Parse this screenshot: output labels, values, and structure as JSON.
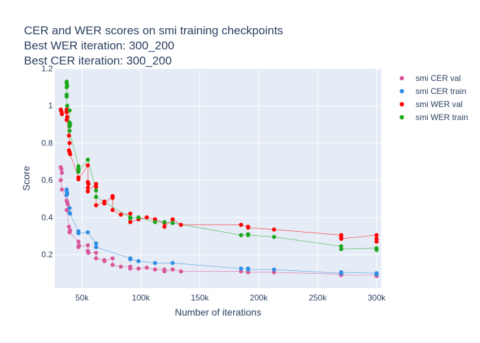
{
  "chart_data": {
    "type": "scatter",
    "title_lines": [
      "CER and WER scores on smi training checkpoints",
      "Best WER iteration: 300_200",
      "Best CER iteration: 300_200"
    ],
    "xlabel": "Number of iterations",
    "ylabel": "Score",
    "xlim": [
      27000,
      304000
    ],
    "ylim": [
      0.02,
      1.2
    ],
    "x_ticks": [
      50000,
      100000,
      150000,
      200000,
      250000,
      300000
    ],
    "x_tick_labels": [
      "50k",
      "100k",
      "150k",
      "200k",
      "250k",
      "300k"
    ],
    "y_ticks": [
      0.2,
      0.4,
      0.6,
      0.8,
      1,
      1.2
    ],
    "y_tick_labels": [
      "0.2",
      "0.4",
      "0.6",
      "0.8",
      "1",
      "1.2"
    ],
    "grid": true,
    "legend_position": "right",
    "series": [
      {
        "name": "smi CER val",
        "color": "#d9579a",
        "points": [
          [
            32000,
            0.67
          ],
          [
            32500,
            0.66
          ],
          [
            33000,
            0.64
          ],
          [
            32000,
            0.6
          ],
          [
            33000,
            0.55
          ],
          [
            37000,
            0.49
          ],
          [
            37500,
            0.48
          ],
          [
            38000,
            0.47
          ],
          [
            37000,
            0.44
          ],
          [
            39000,
            0.35
          ],
          [
            40000,
            0.33
          ],
          [
            39500,
            0.32
          ],
          [
            47000,
            0.27
          ],
          [
            47500,
            0.25
          ],
          [
            47000,
            0.24
          ],
          [
            55000,
            0.25
          ],
          [
            55000,
            0.22
          ],
          [
            55500,
            0.21
          ],
          [
            62000,
            0.21
          ],
          [
            62000,
            0.18
          ],
          [
            69000,
            0.17
          ],
          [
            69000,
            0.165
          ],
          [
            76000,
            0.18
          ],
          [
            76000,
            0.145
          ],
          [
            83000,
            0.135
          ],
          [
            91000,
            0.135
          ],
          [
            91000,
            0.125
          ],
          [
            98000,
            0.125
          ],
          [
            105000,
            0.13
          ],
          [
            112000,
            0.12
          ],
          [
            120000,
            0.12
          ],
          [
            120000,
            0.11
          ],
          [
            127000,
            0.12
          ],
          [
            134000,
            0.11
          ],
          [
            185000,
            0.11
          ],
          [
            191000,
            0.105
          ],
          [
            213000,
            0.105
          ],
          [
            270000,
            0.095
          ],
          [
            270000,
            0.09
          ],
          [
            300000,
            0.09
          ],
          [
            300000,
            0.085
          ]
        ]
      },
      {
        "name": "smi CER train",
        "color": "#2f8de4",
        "points": [
          [
            37000,
            0.55
          ],
          [
            37000,
            0.54
          ],
          [
            37500,
            0.53
          ],
          [
            37000,
            0.52
          ],
          [
            39500,
            0.45
          ],
          [
            40000,
            0.42
          ],
          [
            39500,
            0.425
          ],
          [
            47000,
            0.325
          ],
          [
            47000,
            0.315
          ],
          [
            55000,
            0.32
          ],
          [
            62000,
            0.26
          ],
          [
            62000,
            0.24
          ],
          [
            91000,
            0.18
          ],
          [
            91000,
            0.175
          ],
          [
            98000,
            0.165
          ],
          [
            112000,
            0.155
          ],
          [
            127000,
            0.155
          ],
          [
            185000,
            0.125
          ],
          [
            191000,
            0.125
          ],
          [
            191000,
            0.12
          ],
          [
            213000,
            0.12
          ],
          [
            270000,
            0.1
          ],
          [
            270000,
            0.105
          ],
          [
            300000,
            0.1
          ],
          [
            300000,
            0.095
          ]
        ]
      },
      {
        "name": "smi WER val",
        "color": "#ff0000",
        "points": [
          [
            32000,
            0.98
          ],
          [
            32500,
            0.97
          ],
          [
            33000,
            0.955
          ],
          [
            37000,
            0.98
          ],
          [
            37000,
            0.965
          ],
          [
            37500,
            0.94
          ],
          [
            37000,
            0.925
          ],
          [
            39000,
            0.84
          ],
          [
            39500,
            0.8
          ],
          [
            39000,
            0.76
          ],
          [
            39500,
            0.75
          ],
          [
            40000,
            0.74
          ],
          [
            47000,
            0.615
          ],
          [
            47000,
            0.605
          ],
          [
            55000,
            0.68
          ],
          [
            55000,
            0.59
          ],
          [
            55500,
            0.58
          ],
          [
            55000,
            0.56
          ],
          [
            55000,
            0.54
          ],
          [
            62000,
            0.58
          ],
          [
            62000,
            0.565
          ],
          [
            62000,
            0.465
          ],
          [
            69000,
            0.485
          ],
          [
            69000,
            0.475
          ],
          [
            76000,
            0.515
          ],
          [
            76000,
            0.505
          ],
          [
            76000,
            0.44
          ],
          [
            83000,
            0.415
          ],
          [
            91000,
            0.42
          ],
          [
            91000,
            0.395
          ],
          [
            91000,
            0.375
          ],
          [
            98000,
            0.39
          ],
          [
            105000,
            0.4
          ],
          [
            112000,
            0.39
          ],
          [
            120000,
            0.37
          ],
          [
            120000,
            0.35
          ],
          [
            127000,
            0.39
          ],
          [
            134000,
            0.36
          ],
          [
            185000,
            0.36
          ],
          [
            191000,
            0.35
          ],
          [
            191000,
            0.345
          ],
          [
            213000,
            0.335
          ],
          [
            270000,
            0.305
          ],
          [
            270000,
            0.295
          ],
          [
            270000,
            0.285
          ],
          [
            300000,
            0.305
          ],
          [
            300000,
            0.285
          ],
          [
            300000,
            0.27
          ]
        ]
      },
      {
        "name": "smi WER train",
        "color": "#1ca81c",
        "points": [
          [
            37000,
            1.13
          ],
          [
            37000,
            1.12
          ],
          [
            37500,
            1.11
          ],
          [
            37000,
            1.1
          ],
          [
            37000,
            1.06
          ],
          [
            37000,
            1.05
          ],
          [
            37500,
            1.0
          ],
          [
            39500,
            0.975
          ],
          [
            39500,
            0.91
          ],
          [
            40000,
            0.9
          ],
          [
            39500,
            0.89
          ],
          [
            39500,
            0.865
          ],
          [
            47000,
            0.675
          ],
          [
            47000,
            0.66
          ],
          [
            47000,
            0.655
          ],
          [
            47000,
            0.645
          ],
          [
            55000,
            0.71
          ],
          [
            62000,
            0.545
          ],
          [
            62000,
            0.51
          ],
          [
            91000,
            0.4
          ],
          [
            91000,
            0.395
          ],
          [
            98000,
            0.4
          ],
          [
            112000,
            0.375
          ],
          [
            120000,
            0.375
          ],
          [
            127000,
            0.37
          ],
          [
            185000,
            0.305
          ],
          [
            191000,
            0.31
          ],
          [
            191000,
            0.305
          ],
          [
            213000,
            0.295
          ],
          [
            270000,
            0.245
          ],
          [
            270000,
            0.23
          ],
          [
            300000,
            0.235
          ],
          [
            300000,
            0.23
          ],
          [
            300000,
            0.225
          ]
        ]
      }
    ]
  }
}
